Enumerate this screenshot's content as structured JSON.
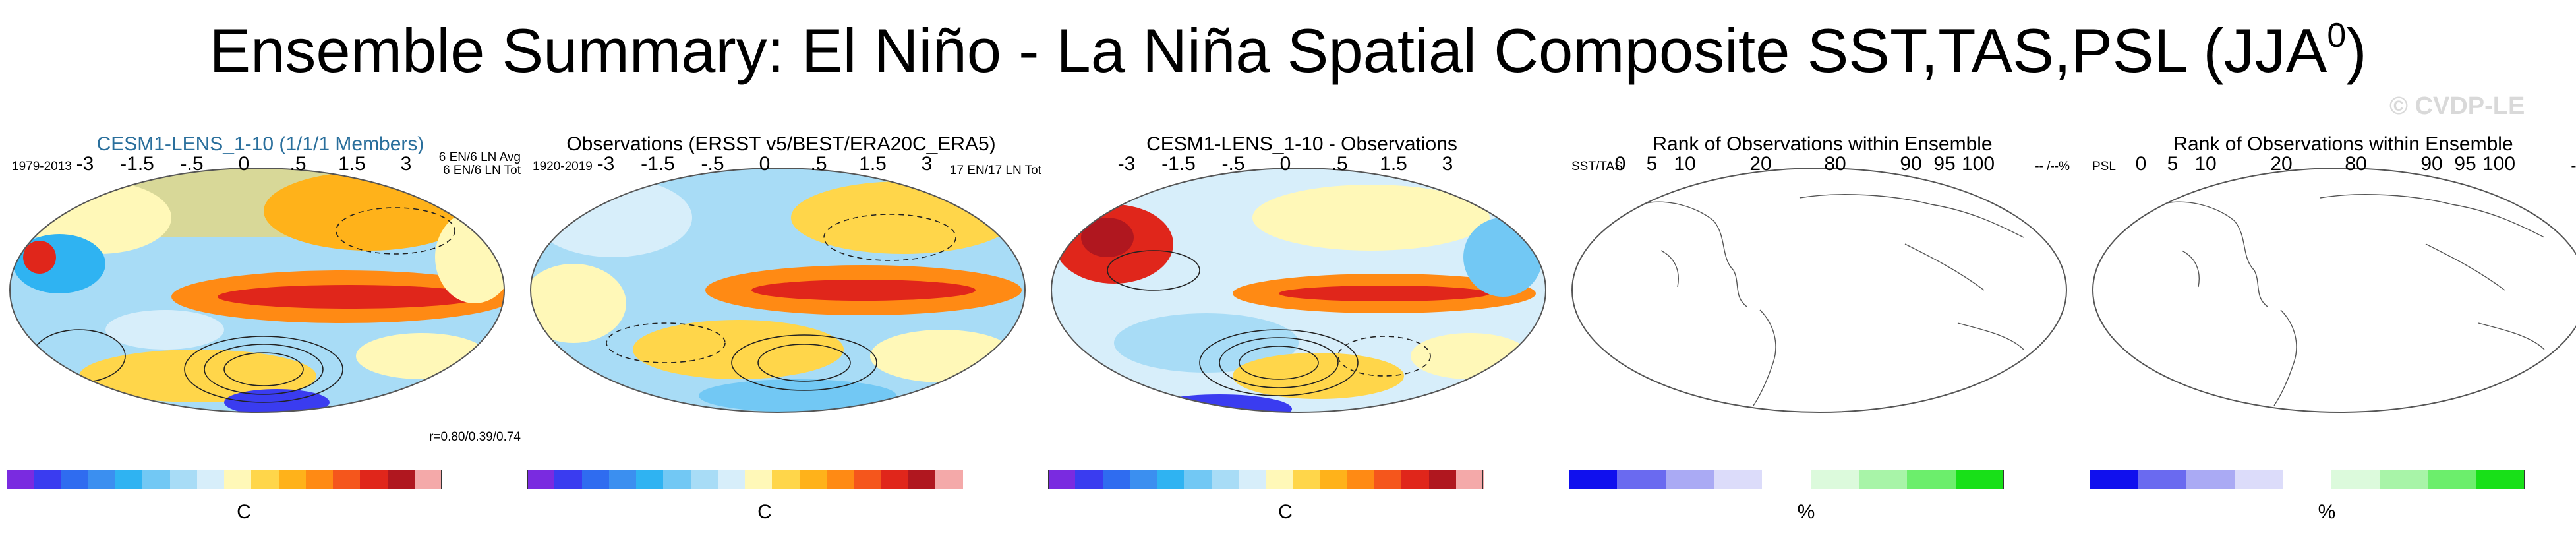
{
  "title": "Ensemble Summary: El Niño - La Niña Spatial Composite SST,TAS,PSL (JJA",
  "title_sup": "0",
  "title_close": ")",
  "watermark": "© CVDP-LE",
  "panels": [
    {
      "title": "CESM1-LENS_1-10 (1/1/1 Members)",
      "left_label": "1979-2013",
      "right_label": "6 EN/6 LN Avg",
      "right_label2": "6 EN/6 LN Tot",
      "bottom_label": "r=0.80/0.39/0.74",
      "unit": "C",
      "ticks": [
        "-3",
        "-1.5",
        "-.5",
        "0",
        ".5",
        "1.5",
        "3"
      ]
    },
    {
      "title": "Observations (ERSST v5/BEST/ERA20C_ERA5)",
      "left_label": "1920-2019",
      "right_label": "17 EN/17 LN Tot",
      "unit": "C",
      "ticks": [
        "-3",
        "-1.5",
        "-.5",
        "0",
        ".5",
        "1.5",
        "3"
      ]
    },
    {
      "title": "CESM1-LENS_1-10 - Observations",
      "unit": "C",
      "ticks": [
        "-3",
        "-1.5",
        "-.5",
        "0",
        ".5",
        "1.5",
        "3"
      ]
    },
    {
      "title": "Rank of Observations within Ensemble",
      "left_label": "SST/TAS",
      "right_label": "-- /--%",
      "unit": "%",
      "ticks": [
        "0",
        "5",
        "10",
        "20",
        "80",
        "90",
        "95",
        "100"
      ]
    },
    {
      "title": "Rank of Observations within Ensemble",
      "left_label": "PSL",
      "right_label": "--%",
      "unit": "%",
      "ticks": [
        "0",
        "5",
        "10",
        "20",
        "80",
        "90",
        "95",
        "100"
      ]
    }
  ],
  "colorbars": {
    "temperature": [
      "#7a2be0",
      "#3a3cf0",
      "#2f6cf0",
      "#3b8ff0",
      "#2fb3f2",
      "#72c8f4",
      "#a8dcf6",
      "#d7eefa",
      "#fff8b8",
      "#ffd64a",
      "#ffb21a",
      "#ff8a14",
      "#f5561c",
      "#e0261b",
      "#b0171f",
      "#f4a9a9"
    ],
    "rank": [
      "#1010ee",
      "#6a6af0",
      "#aaaaf4",
      "#dcdcfa",
      "#ffffff",
      "#dcfadc",
      "#a8f4a8",
      "#6cee6c",
      "#18e018"
    ]
  }
}
